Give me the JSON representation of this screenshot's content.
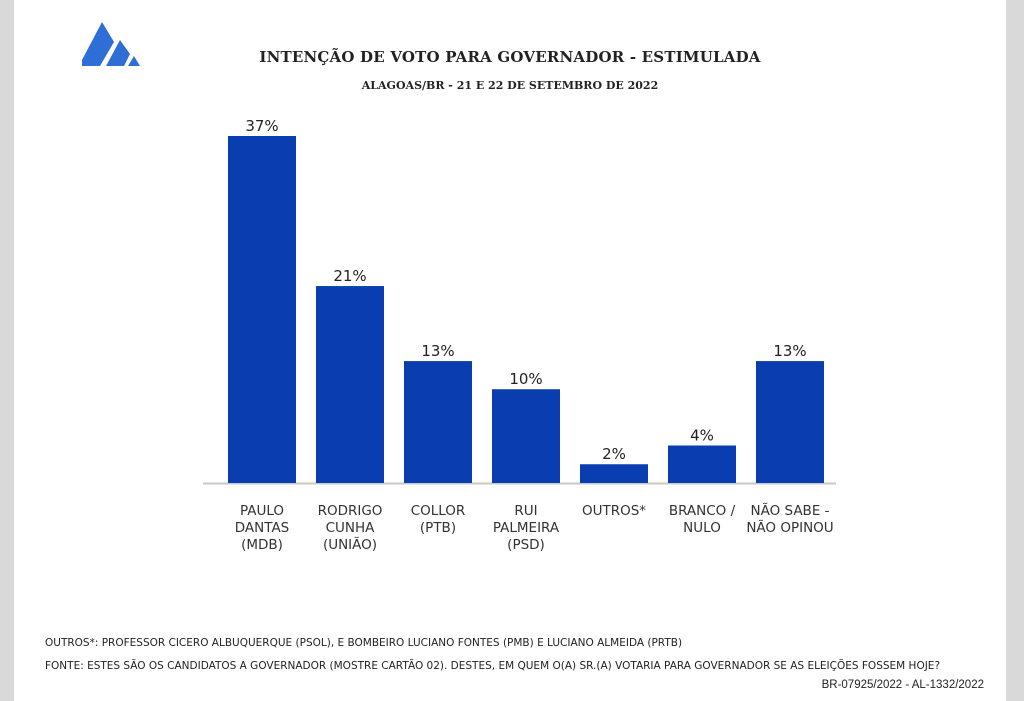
{
  "header": {
    "title": "INTENÇÃO DE VOTO PARA GOVERNADOR - ESTIMULADA",
    "subtitle": "ALAGOAS/BR - 21 E 22 DE SETEMBRO DE 2022",
    "logo_icon": "stripes-logo-icon"
  },
  "colors": {
    "bar": "#0a3eb0",
    "axis": "#c8c8c8",
    "logo": "#2f6ed6"
  },
  "chart_data": {
    "type": "bar",
    "title": "INTENÇÃO DE VOTO PARA GOVERNADOR - ESTIMULADA",
    "subtitle": "ALAGOAS/BR - 21 E 22 DE SETEMBRO DE 2022",
    "xlabel": "",
    "ylabel": "",
    "ylim": [
      0,
      37
    ],
    "grid": false,
    "categories": [
      [
        "PAULO",
        "DANTAS",
        "(MDB)"
      ],
      [
        "RODRIGO",
        "CUNHA",
        "(UNIÃO)"
      ],
      [
        "COLLOR",
        "(PTB)"
      ],
      [
        "RUI",
        "PALMEIRA",
        "(PSD)"
      ],
      [
        "OUTROS*"
      ],
      [
        "BRANCO /",
        "NULO"
      ],
      [
        "NÃO SABE  -",
        "NÃO OPINOU"
      ]
    ],
    "values": [
      37,
      21,
      13,
      10,
      2,
      4,
      13
    ],
    "value_labels": [
      "37%",
      "21%",
      "13%",
      "10%",
      "2%",
      "4%",
      "13%"
    ]
  },
  "footer": {
    "outros_note": "OUTROS*: PROFESSOR CICERO ALBUQUERQUE (PSOL), E BOMBEIRO LUCIANO FONTES (PMB) E LUCIANO ALMEIDA (PRTB)",
    "fonte_note": "FONTE: ESTES SÃO OS CANDIDATOS A GOVERNADOR (MOSTRE CARTÃO 02). DESTES, EM QUEM O(A) SR.(A) VOTARIA PARA GOVERNADOR SE AS ELEIÇÕES FOSSEM HOJE?",
    "registration": "BR-07925/2022 - AL-1332/2022"
  }
}
